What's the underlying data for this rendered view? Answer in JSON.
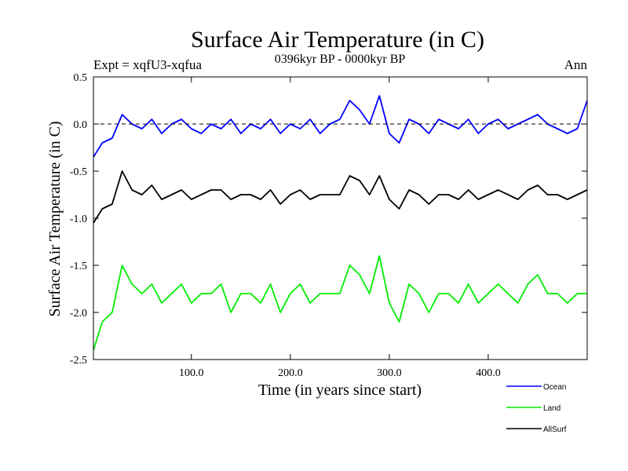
{
  "chart_data": {
    "type": "line",
    "title": "Surface Air Temperature (in C)",
    "subtitle_left": "Expt = xqfU3-xqfua",
    "subtitle_center": "0396kyr BP - 0000kyr BP",
    "subtitle_right": "Ann",
    "xlabel": "Time (in years since start)",
    "ylabel": "Surface Air Temperature (in C)",
    "xlim": [
      1,
      500
    ],
    "ylim": [
      -2.5,
      0.5
    ],
    "xticks": [
      100,
      200,
      300,
      400
    ],
    "xtick_labels": [
      "100.0",
      "200.0",
      "300.0",
      "400.0"
    ],
    "yticks": [
      0.5,
      0.0,
      -0.5,
      -1.0,
      -1.5,
      -2.0,
      -2.5
    ],
    "ytick_labels": [
      "0.5",
      "0.0",
      "-0.5",
      "-1.0",
      "-1.5",
      "-2.0",
      "-2.5"
    ],
    "reference_line": 0.0,
    "series": [
      {
        "name": "Ocean",
        "color": "#0000ff",
        "x": [
          1,
          10,
          20,
          30,
          40,
          50,
          60,
          70,
          80,
          90,
          100,
          110,
          120,
          130,
          140,
          150,
          160,
          170,
          180,
          190,
          200,
          210,
          220,
          230,
          240,
          250,
          260,
          270,
          280,
          290,
          300,
          310,
          320,
          330,
          340,
          350,
          360,
          370,
          380,
          390,
          400,
          410,
          420,
          430,
          440,
          450,
          460,
          470,
          480,
          490,
          500
        ],
        "values": [
          -0.35,
          -0.2,
          -0.15,
          0.1,
          0.0,
          -0.05,
          0.05,
          -0.1,
          0.0,
          0.05,
          -0.05,
          -0.1,
          0.0,
          -0.05,
          0.05,
          -0.1,
          0.0,
          -0.05,
          0.05,
          -0.1,
          0.0,
          -0.05,
          0.05,
          -0.1,
          0.0,
          0.05,
          0.25,
          0.15,
          0.0,
          0.3,
          -0.1,
          -0.2,
          0.05,
          0.0,
          -0.1,
          0.05,
          0.0,
          -0.05,
          0.05,
          -0.1,
          0.0,
          0.05,
          -0.05,
          0.0,
          0.05,
          0.1,
          0.0,
          -0.05,
          -0.1,
          -0.05,
          0.25
        ]
      },
      {
        "name": "Land",
        "color": "#00ee00",
        "x": [
          1,
          10,
          20,
          30,
          40,
          50,
          60,
          70,
          80,
          90,
          100,
          110,
          120,
          130,
          140,
          150,
          160,
          170,
          180,
          190,
          200,
          210,
          220,
          230,
          240,
          250,
          260,
          270,
          280,
          290,
          300,
          310,
          320,
          330,
          340,
          350,
          360,
          370,
          380,
          390,
          400,
          410,
          420,
          430,
          440,
          450,
          460,
          470,
          480,
          490,
          500
        ],
        "values": [
          -2.4,
          -2.1,
          -2.0,
          -1.5,
          -1.7,
          -1.8,
          -1.7,
          -1.9,
          -1.8,
          -1.7,
          -1.9,
          -1.8,
          -1.8,
          -1.7,
          -2.0,
          -1.8,
          -1.8,
          -1.9,
          -1.7,
          -2.0,
          -1.8,
          -1.7,
          -1.9,
          -1.8,
          -1.8,
          -1.8,
          -1.5,
          -1.6,
          -1.8,
          -1.4,
          -1.9,
          -2.1,
          -1.7,
          -1.8,
          -2.0,
          -1.8,
          -1.8,
          -1.9,
          -1.7,
          -1.9,
          -1.8,
          -1.7,
          -1.8,
          -1.9,
          -1.7,
          -1.6,
          -1.8,
          -1.8,
          -1.9,
          -1.8,
          -1.8
        ]
      },
      {
        "name": "AllSurf",
        "color": "#000000",
        "x": [
          1,
          10,
          20,
          30,
          40,
          50,
          60,
          70,
          80,
          90,
          100,
          110,
          120,
          130,
          140,
          150,
          160,
          170,
          180,
          190,
          200,
          210,
          220,
          230,
          240,
          250,
          260,
          270,
          280,
          290,
          300,
          310,
          320,
          330,
          340,
          350,
          360,
          370,
          380,
          390,
          400,
          410,
          420,
          430,
          440,
          450,
          460,
          470,
          480,
          490,
          500
        ],
        "values": [
          -1.05,
          -0.9,
          -0.85,
          -0.5,
          -0.7,
          -0.75,
          -0.65,
          -0.8,
          -0.75,
          -0.7,
          -0.8,
          -0.75,
          -0.7,
          -0.7,
          -0.8,
          -0.75,
          -0.75,
          -0.8,
          -0.7,
          -0.85,
          -0.75,
          -0.7,
          -0.8,
          -0.75,
          -0.75,
          -0.75,
          -0.55,
          -0.6,
          -0.75,
          -0.55,
          -0.8,
          -0.9,
          -0.7,
          -0.75,
          -0.85,
          -0.75,
          -0.75,
          -0.8,
          -0.7,
          -0.8,
          -0.75,
          -0.7,
          -0.75,
          -0.8,
          -0.7,
          -0.65,
          -0.75,
          -0.75,
          -0.8,
          -0.75,
          -0.7
        ]
      }
    ]
  }
}
